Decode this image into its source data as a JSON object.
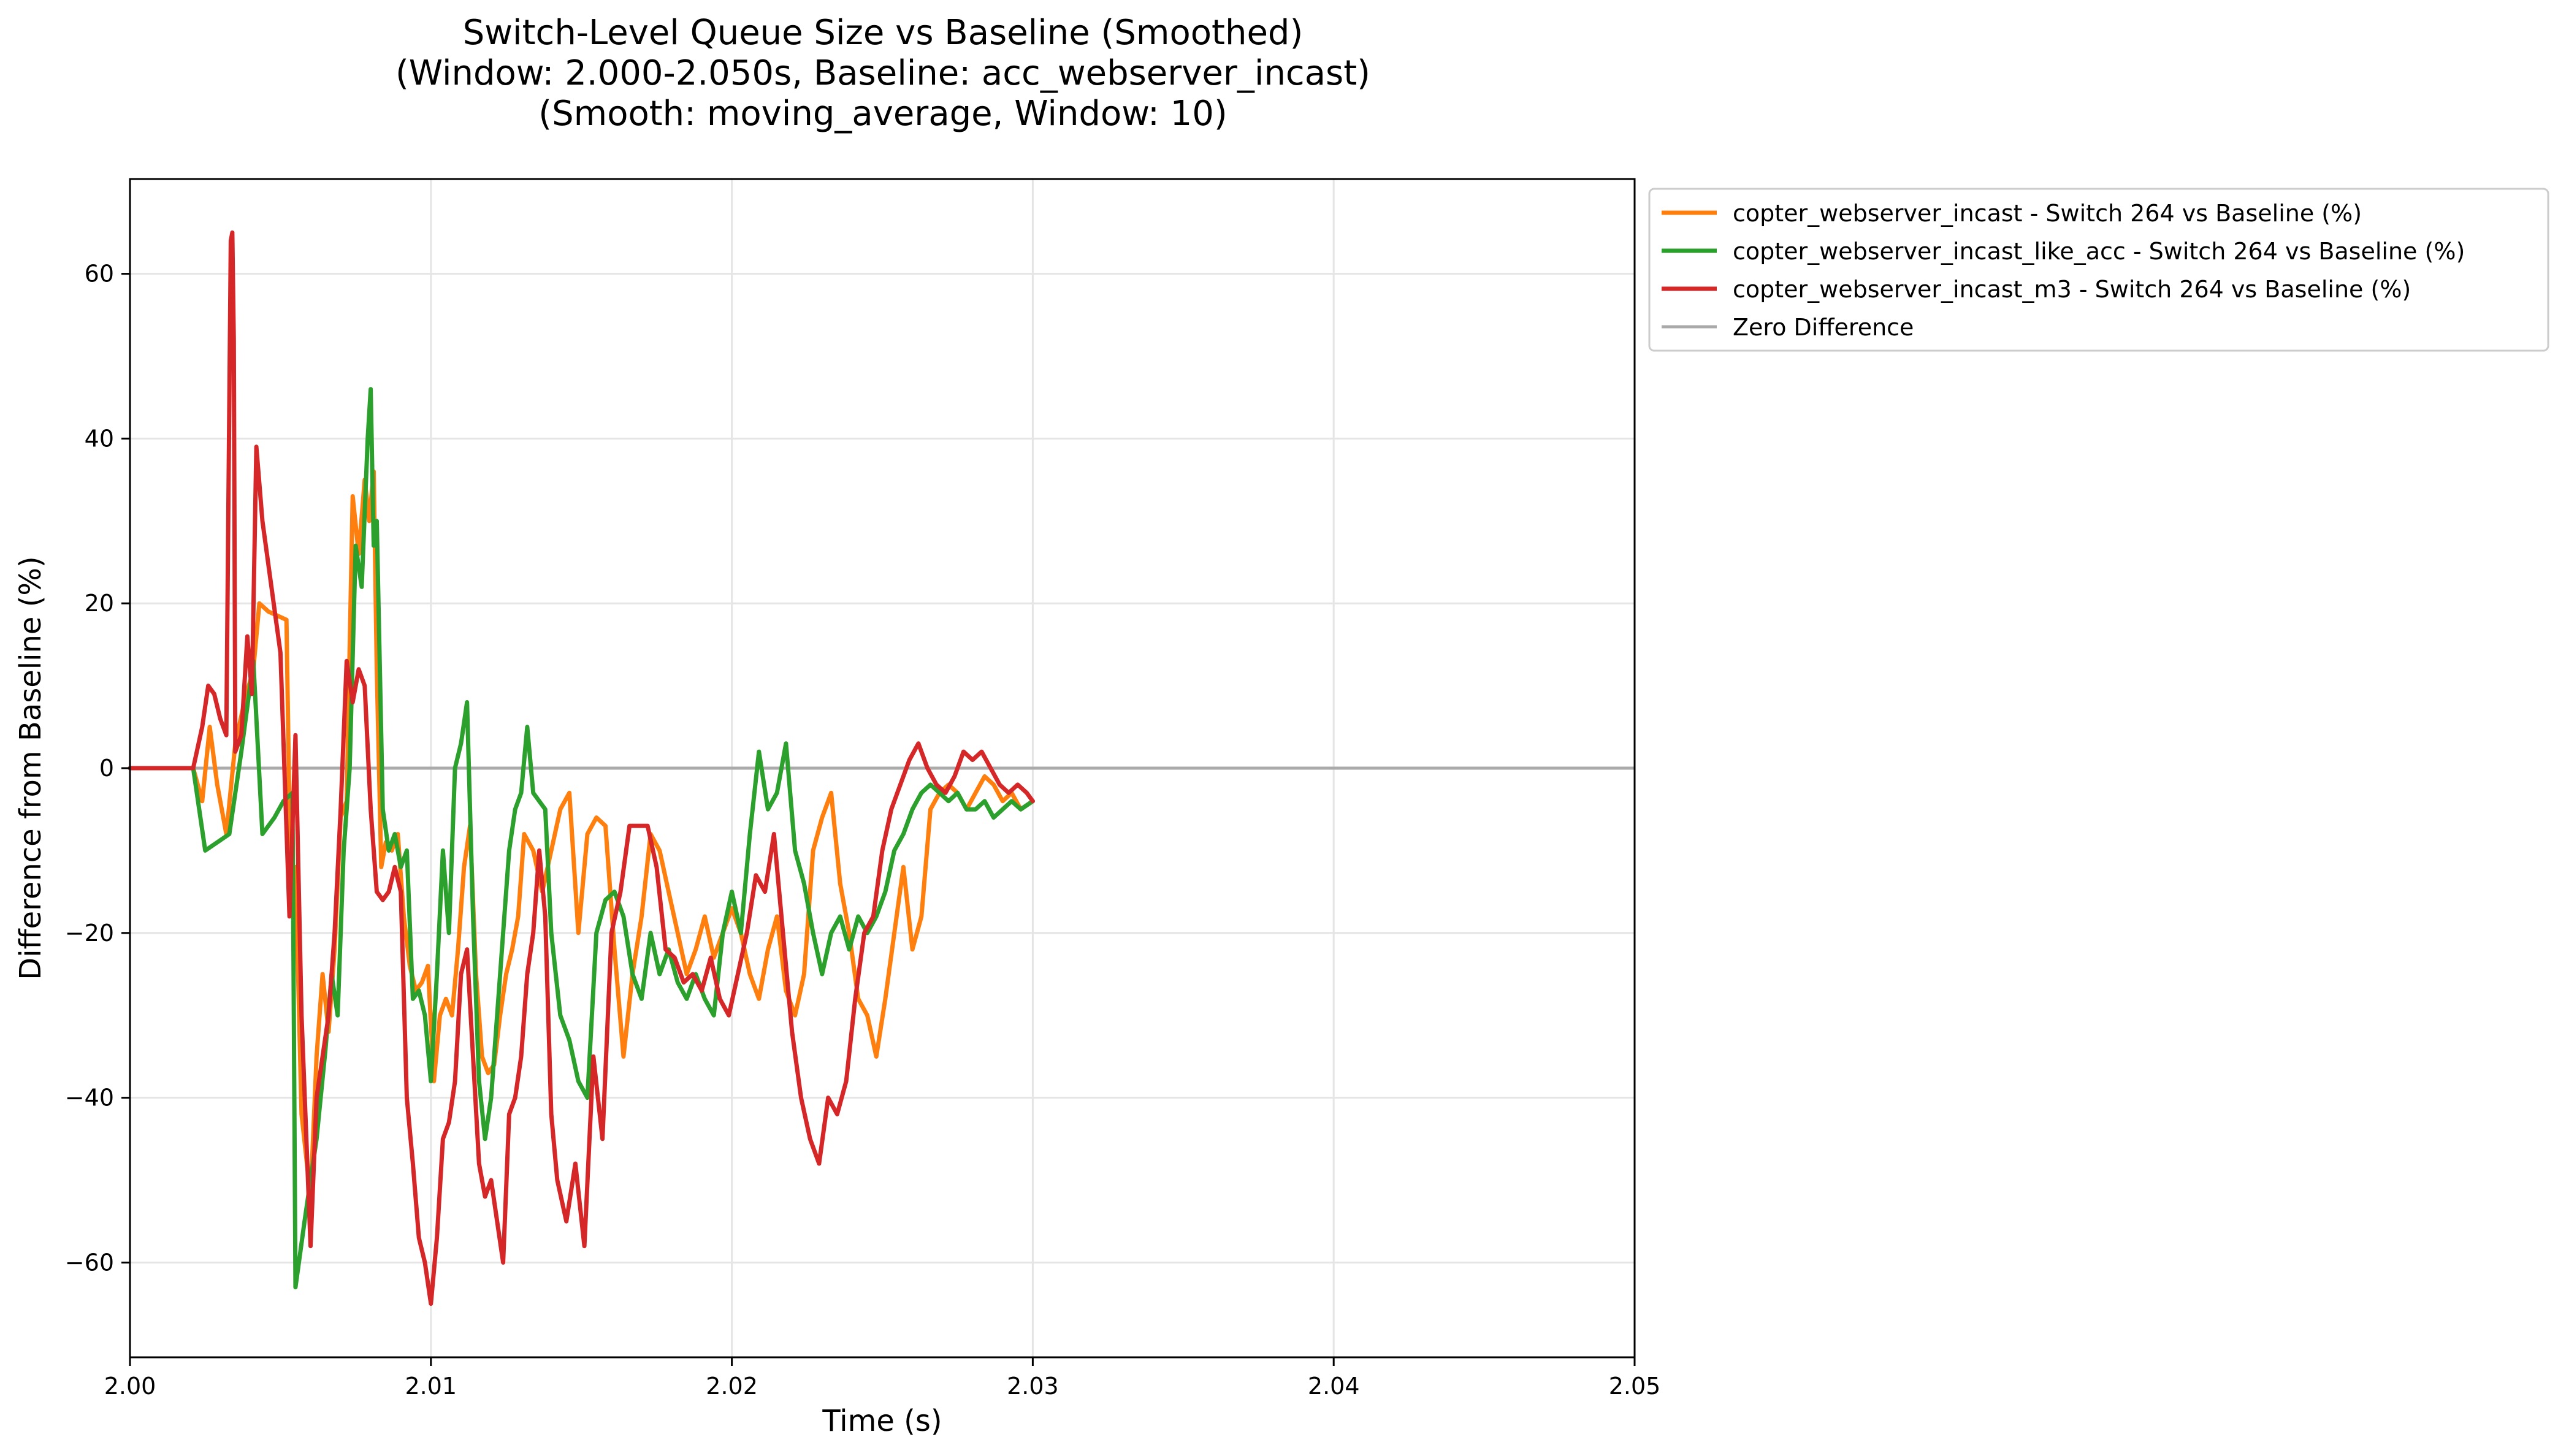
{
  "chart_data": {
    "type": "line",
    "title": [
      "Switch-Level Queue Size vs Baseline (Smoothed)",
      "(Window: 2.000-2.050s, Baseline: acc_webserver_incast)",
      "(Smooth: moving_average, Window: 10)"
    ],
    "xlabel": "Time (s)",
    "ylabel": "Difference from Baseline (%)",
    "xlim": [
      2.0,
      2.05
    ],
    "ylim": [
      -71.5,
      71.5
    ],
    "xticks": [
      2.0,
      2.01,
      2.02,
      2.03,
      2.04,
      2.05
    ],
    "xtick_labels": [
      "2.00",
      "2.01",
      "2.02",
      "2.03",
      "2.04",
      "2.05"
    ],
    "yticks": [
      -60,
      -40,
      -20,
      0,
      20,
      40,
      60
    ],
    "ytick_labels": [
      "−60",
      "−40",
      "−20",
      "0",
      "20",
      "40",
      "60"
    ],
    "grid": true,
    "legend_position": "outside-top-right",
    "zero_line": {
      "name": "Zero Difference",
      "y": 0,
      "color": "#aaaaaa"
    },
    "series": [
      {
        "name": "copter_webserver_incast - Switch 264 vs Baseline (%)",
        "color": "#ff7f0e",
        "x": [
          2.0,
          2.0021,
          2.0024,
          2.00265,
          2.0029,
          2.0032,
          2.0035,
          2.0038,
          2.0041,
          2.0043,
          2.0046,
          2.0052,
          2.00535,
          2.0055,
          2.0057,
          2.006,
          2.0062,
          2.0064,
          2.0066,
          2.0068,
          2.007,
          2.0072,
          2.0074,
          2.0076,
          2.0078,
          2.00795,
          2.0081,
          2.0082,
          2.00835,
          2.0085,
          2.0087,
          2.0089,
          2.0091,
          2.0093,
          2.0095,
          2.0097,
          2.0099,
          2.0101,
          2.0103,
          2.0105,
          2.0107,
          2.0109,
          2.0111,
          2.0113,
          2.0115,
          2.0117,
          2.0119,
          2.0121,
          2.0123,
          2.0125,
          2.0127,
          2.0129,
          2.0131,
          2.0134,
          2.0137,
          2.014,
          2.0143,
          2.0146,
          2.0149,
          2.0152,
          2.0155,
          2.0158,
          2.0161,
          2.0164,
          2.0167,
          2.017,
          2.0173,
          2.0176,
          2.0179,
          2.0182,
          2.0185,
          2.0188,
          2.0191,
          2.0194,
          2.0197,
          2.02,
          2.0203,
          2.0206,
          2.0209,
          2.0212,
          2.0215,
          2.0218,
          2.0221,
          2.0224,
          2.0227,
          2.023,
          2.0233,
          2.0236,
          2.0239,
          2.0242,
          2.0245,
          2.0248,
          2.0251,
          2.0254,
          2.0257,
          2.026,
          2.0263,
          2.0266,
          2.0269,
          2.0272,
          2.0275,
          2.0278,
          2.0281,
          2.0284,
          2.0287,
          2.029,
          2.0293,
          2.0296,
          2.03
        ],
        "y": [
          0,
          0,
          -4,
          5,
          -2,
          -8,
          3,
          8,
          12,
          20,
          19,
          18,
          -17,
          -12,
          -42,
          -52,
          -35,
          -25,
          -32,
          -22,
          -6,
          -4,
          33,
          26,
          35,
          30,
          36,
          12,
          -12,
          -9,
          -10,
          -8,
          -18,
          -24,
          -27,
          -26,
          -24,
          -38,
          -30,
          -28,
          -30,
          -22,
          -12,
          -7,
          -25,
          -35,
          -37,
          -36,
          -30,
          -25,
          -22,
          -18,
          -8,
          -10,
          -15,
          -10,
          -5,
          -3,
          -20,
          -8,
          -6,
          -7,
          -22,
          -35,
          -25,
          -18,
          -8,
          -10,
          -15,
          -20,
          -25,
          -22,
          -18,
          -23,
          -20,
          -17,
          -20,
          -25,
          -28,
          -22,
          -18,
          -27,
          -30,
          -25,
          -10,
          -6,
          -3,
          -14,
          -20,
          -28,
          -30,
          -35,
          -28,
          -20,
          -12,
          -22,
          -18,
          -5,
          -3,
          -2,
          -3,
          -5,
          -3,
          -1,
          -2,
          -4,
          -3,
          -5,
          -4
        ]
      },
      {
        "name": "copter_webserver_incast_like_acc - Switch 264 vs Baseline (%)",
        "color": "#2ca02c",
        "x": [
          2.0,
          2.0021,
          2.0025,
          2.0029,
          2.0033,
          2.0037,
          2.0041,
          2.0044,
          2.0048,
          2.0051,
          2.0054,
          2.0055,
          2.0058,
          2.0062,
          2.0065,
          2.0067,
          2.0069,
          2.0071,
          2.0073,
          2.0075,
          2.0077,
          2.0079,
          2.008,
          2.0081,
          2.0082,
          2.0084,
          2.0086,
          2.0088,
          2.009,
          2.0092,
          2.0094,
          2.0096,
          2.0098,
          2.01,
          2.0102,
          2.0104,
          2.0106,
          2.0108,
          2.011,
          2.0112,
          2.0114,
          2.0116,
          2.0118,
          2.012,
          2.0122,
          2.0124,
          2.0126,
          2.0128,
          2.013,
          2.0132,
          2.0134,
          2.0136,
          2.0138,
          2.014,
          2.0143,
          2.0146,
          2.0149,
          2.0152,
          2.0155,
          2.0158,
          2.0161,
          2.0164,
          2.0167,
          2.017,
          2.0173,
          2.0176,
          2.0179,
          2.0182,
          2.0185,
          2.0188,
          2.0191,
          2.0194,
          2.0197,
          2.02,
          2.0203,
          2.0206,
          2.0209,
          2.0212,
          2.0215,
          2.0218,
          2.0221,
          2.0224,
          2.0227,
          2.023,
          2.0233,
          2.0236,
          2.0239,
          2.0242,
          2.0245,
          2.0248,
          2.0251,
          2.0254,
          2.0257,
          2.026,
          2.0263,
          2.0266,
          2.0269,
          2.0272,
          2.0275,
          2.0278,
          2.0281,
          2.0284,
          2.0287,
          2.029,
          2.0293,
          2.0296,
          2.03
        ],
        "y": [
          0,
          0,
          -10,
          -9,
          -8,
          2,
          13,
          -8,
          -6,
          -4,
          -3,
          -63,
          -55,
          -45,
          -34,
          -25,
          -30,
          -10,
          0,
          27,
          22,
          40,
          46,
          27,
          30,
          -5,
          -10,
          -8,
          -12,
          -10,
          -28,
          -27,
          -30,
          -38,
          -25,
          -10,
          -20,
          0,
          3,
          8,
          -18,
          -38,
          -45,
          -40,
          -30,
          -20,
          -10,
          -5,
          -3,
          5,
          -3,
          -4,
          -5,
          -20,
          -30,
          -33,
          -38,
          -40,
          -20,
          -16,
          -15,
          -18,
          -25,
          -28,
          -20,
          -25,
          -22,
          -26,
          -28,
          -25,
          -28,
          -30,
          -20,
          -15,
          -20,
          -8,
          2,
          -5,
          -3,
          3,
          -10,
          -14,
          -20,
          -25,
          -20,
          -18,
          -22,
          -18,
          -20,
          -18,
          -15,
          -10,
          -8,
          -5,
          -3,
          -2,
          -3,
          -4,
          -3,
          -5,
          -5,
          -4,
          -6,
          -5,
          -4,
          -5,
          -4
        ]
      },
      {
        "name": "copter_webserver_incast_m3 - Switch 264 vs Baseline (%)",
        "color": "#d62728",
        "x": [
          2.0,
          2.0021,
          2.0024,
          2.0026,
          2.0028,
          2.003,
          2.0032,
          2.00335,
          2.0034,
          2.00345,
          2.0035,
          2.0037,
          2.0039,
          2.00405,
          2.0042,
          2.0044,
          2.0047,
          2.005,
          2.0053,
          2.0055,
          2.0057,
          2.006,
          2.0062,
          2.0064,
          2.0066,
          2.0068,
          2.007,
          2.0072,
          2.0074,
          2.0076,
          2.0078,
          2.008,
          2.0082,
          2.0084,
          2.0086,
          2.0088,
          2.009,
          2.0092,
          2.0094,
          2.0096,
          2.0098,
          2.01,
          2.0102,
          2.0104,
          2.0106,
          2.0108,
          2.011,
          2.0112,
          2.0114,
          2.0116,
          2.0118,
          2.012,
          2.0122,
          2.0124,
          2.0126,
          2.0128,
          2.013,
          2.0132,
          2.0134,
          2.0136,
          2.0138,
          2.014,
          2.0142,
          2.0145,
          2.0148,
          2.0151,
          2.0154,
          2.0157,
          2.016,
          2.0163,
          2.0166,
          2.0169,
          2.0172,
          2.0175,
          2.0178,
          2.0181,
          2.0184,
          2.0187,
          2.019,
          2.0193,
          2.0196,
          2.0199,
          2.0202,
          2.0205,
          2.0208,
          2.0211,
          2.0214,
          2.0217,
          2.022,
          2.0223,
          2.0226,
          2.0229,
          2.0232,
          2.0235,
          2.0238,
          2.0241,
          2.0244,
          2.0247,
          2.025,
          2.0253,
          2.0256,
          2.0259,
          2.0262,
          2.0265,
          2.0268,
          2.0271,
          2.0274,
          2.0277,
          2.028,
          2.0283,
          2.0286,
          2.0289,
          2.0292,
          2.0295,
          2.0298,
          2.03
        ],
        "y": [
          0,
          0,
          5,
          10,
          9,
          6,
          4,
          64,
          65,
          52,
          2,
          4,
          16,
          9,
          39,
          30,
          22,
          14,
          -18,
          4,
          -30,
          -58,
          -40,
          -35,
          -30,
          -20,
          -5,
          13,
          8,
          12,
          10,
          -5,
          -15,
          -16,
          -15,
          -12,
          -15,
          -40,
          -48,
          -57,
          -60,
          -65,
          -57,
          -45,
          -43,
          -38,
          -25,
          -22,
          -35,
          -48,
          -52,
          -50,
          -55,
          -60,
          -42,
          -40,
          -35,
          -25,
          -20,
          -10,
          -18,
          -42,
          -50,
          -55,
          -48,
          -58,
          -35,
          -45,
          -20,
          -15,
          -7,
          -7,
          -7,
          -12,
          -22,
          -23,
          -26,
          -25,
          -27,
          -23,
          -28,
          -30,
          -25,
          -20,
          -13,
          -15,
          -8,
          -20,
          -32,
          -40,
          -45,
          -48,
          -40,
          -42,
          -38,
          -28,
          -20,
          -18,
          -10,
          -5,
          -2,
          1,
          3,
          0,
          -2,
          -3,
          -1,
          2,
          1,
          2,
          0,
          -2,
          -3,
          -2,
          -3,
          -4
        ]
      }
    ]
  }
}
